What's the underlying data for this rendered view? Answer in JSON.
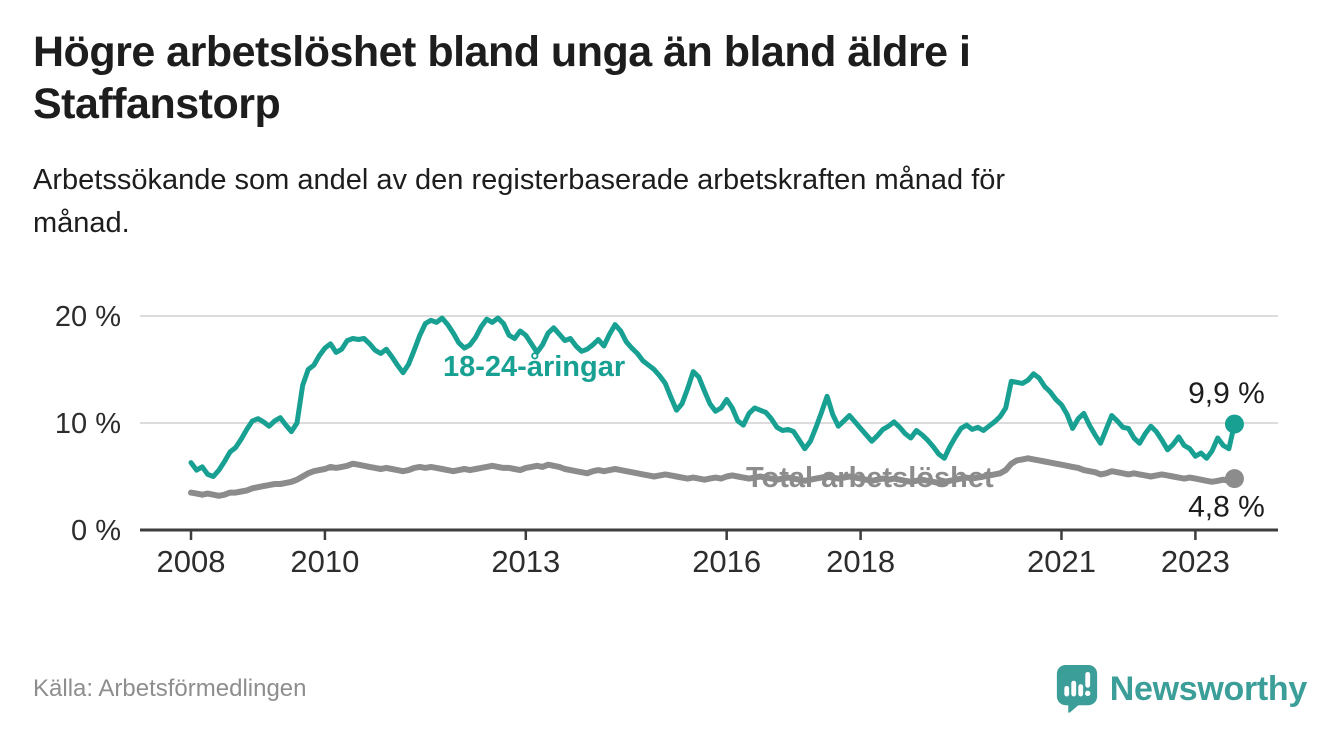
{
  "header": {
    "title": "Högre arbetslöshet bland unga än bland äldre i\nStaffanstorp",
    "subtitle": "Arbetssökande som andel av den registerbaserade arbetskraften månad för\nmånad."
  },
  "footer": {
    "source": "Källa: Arbetsförmedlingen",
    "brand": "Newsworthy",
    "brand_icon": "newsworthy-speech-bubble-bar-chart-icon"
  },
  "colors": {
    "youth_teal": "#18a193",
    "total_gray": "#8c8c8c",
    "gridline": "#dcdcdc",
    "axis": "#3d3d3d",
    "tick_label": "#2d2d2d",
    "annotation_text": "#1d1d1d",
    "brand_teal": "#3b9e98",
    "title_text": "#1d1d1d",
    "source_text": "#8e8e8e"
  },
  "chart_data": {
    "type": "line",
    "x_unit": "month",
    "x_start": "2008-01",
    "x_end": "2023-08",
    "grid": "horizontal",
    "ylim": [
      0,
      21
    ],
    "y_ticks": [
      {
        "value": 0,
        "label": "0 %"
      },
      {
        "value": 10,
        "label": "10 %"
      },
      {
        "value": 20,
        "label": "20 %"
      }
    ],
    "x_ticks": [
      {
        "year": 2008,
        "label": "2008"
      },
      {
        "year": 2010,
        "label": "2010"
      },
      {
        "year": 2013,
        "label": "2013"
      },
      {
        "year": 2016,
        "label": "2016"
      },
      {
        "year": 2018,
        "label": "2018"
      },
      {
        "year": 2021,
        "label": "2021"
      },
      {
        "year": 2023,
        "label": "2023"
      }
    ],
    "series": [
      {
        "name": "Total arbetslöshet",
        "label": "Total arbetslöshet",
        "end_label": "4,8 %",
        "end_value": 4.8,
        "color": "#8c8c8c",
        "stroke_width": 6,
        "values": [
          3.5,
          3.4,
          3.3,
          3.4,
          3.3,
          3.2,
          3.3,
          3.5,
          3.5,
          3.6,
          3.7,
          3.9,
          4.0,
          4.1,
          4.2,
          4.3,
          4.3,
          4.4,
          4.5,
          4.7,
          5.0,
          5.3,
          5.5,
          5.6,
          5.7,
          5.9,
          5.8,
          5.9,
          6.0,
          6.2,
          6.1,
          6.0,
          5.9,
          5.8,
          5.7,
          5.8,
          5.7,
          5.6,
          5.5,
          5.6,
          5.8,
          5.9,
          5.8,
          5.9,
          5.8,
          5.7,
          5.6,
          5.5,
          5.6,
          5.7,
          5.6,
          5.7,
          5.8,
          5.9,
          6.0,
          5.9,
          5.8,
          5.8,
          5.7,
          5.6,
          5.8,
          5.9,
          6.0,
          5.9,
          6.1,
          6.0,
          5.9,
          5.7,
          5.6,
          5.5,
          5.4,
          5.3,
          5.5,
          5.6,
          5.5,
          5.6,
          5.7,
          5.6,
          5.5,
          5.4,
          5.3,
          5.2,
          5.1,
          5.0,
          5.1,
          5.2,
          5.1,
          5.0,
          4.9,
          4.8,
          4.9,
          4.8,
          4.7,
          4.8,
          4.9,
          4.8,
          5.0,
          5.1,
          5.0,
          4.9,
          4.8,
          4.9,
          5.0,
          4.9,
          4.8,
          4.7,
          4.8,
          4.9,
          4.8,
          4.7,
          4.6,
          4.7,
          4.8,
          4.9,
          5.0,
          4.9,
          4.8,
          4.9,
          5.0,
          4.9,
          4.8,
          4.7,
          4.6,
          4.7,
          4.8,
          4.7,
          4.8,
          4.7,
          4.6,
          4.5,
          4.6,
          4.7,
          4.6,
          4.5,
          4.4,
          4.5,
          4.6,
          4.7,
          4.8,
          4.9,
          4.8,
          4.9,
          5.0,
          5.1,
          5.2,
          5.3,
          5.6,
          6.2,
          6.5,
          6.6,
          6.7,
          6.6,
          6.5,
          6.4,
          6.3,
          6.2,
          6.1,
          6.0,
          5.9,
          5.8,
          5.6,
          5.5,
          5.4,
          5.2,
          5.3,
          5.5,
          5.4,
          5.3,
          5.2,
          5.3,
          5.2,
          5.1,
          5.0,
          5.1,
          5.2,
          5.1,
          5.0,
          4.9,
          4.8,
          4.9,
          4.8,
          4.7,
          4.6,
          4.5,
          4.6,
          4.7,
          4.6,
          4.8
        ]
      },
      {
        "name": "18-24-åringar",
        "label": "18-24-åringar",
        "end_label": "9,9 %",
        "end_value": 9.9,
        "color": "#18a193",
        "stroke_width": 5,
        "values": [
          6.3,
          5.6,
          5.9,
          5.2,
          5.0,
          5.6,
          6.4,
          7.3,
          7.7,
          8.5,
          9.4,
          10.2,
          10.4,
          10.1,
          9.7,
          10.2,
          10.5,
          9.8,
          9.2,
          10.0,
          13.5,
          15.0,
          15.4,
          16.3,
          17.0,
          17.4,
          16.6,
          16.9,
          17.7,
          17.9,
          17.8,
          17.9,
          17.4,
          16.8,
          16.5,
          16.9,
          16.2,
          15.4,
          14.7,
          15.5,
          16.8,
          18.2,
          19.3,
          19.6,
          19.4,
          19.8,
          19.2,
          18.4,
          17.5,
          17.0,
          17.3,
          18.0,
          19.0,
          19.7,
          19.4,
          19.8,
          19.3,
          18.2,
          17.9,
          18.6,
          18.2,
          17.4,
          16.6,
          17.3,
          18.4,
          18.9,
          18.3,
          17.7,
          17.9,
          17.2,
          16.7,
          16.9,
          17.3,
          17.8,
          17.2,
          18.3,
          19.2,
          18.6,
          17.6,
          17.0,
          16.5,
          15.8,
          15.4,
          15.0,
          14.4,
          13.7,
          12.4,
          11.2,
          11.8,
          13.2,
          14.8,
          14.3,
          13.0,
          11.8,
          11.1,
          11.4,
          12.2,
          11.4,
          10.2,
          9.8,
          10.9,
          11.4,
          11.2,
          11.0,
          10.4,
          9.6,
          9.3,
          9.4,
          9.2,
          8.4,
          7.6,
          8.3,
          9.6,
          11.0,
          12.5,
          10.8,
          9.7,
          10.2,
          10.7,
          10.1,
          9.5,
          8.9,
          8.3,
          8.8,
          9.4,
          9.7,
          10.1,
          9.6,
          9.0,
          8.6,
          9.3,
          8.9,
          8.4,
          7.8,
          7.1,
          6.7,
          7.8,
          8.7,
          9.5,
          9.8,
          9.4,
          9.6,
          9.3,
          9.7,
          10.1,
          10.6,
          11.4,
          13.9,
          13.8,
          13.7,
          14.0,
          14.6,
          14.2,
          13.4,
          12.9,
          12.2,
          11.7,
          10.8,
          9.5,
          10.4,
          10.9,
          9.8,
          8.9,
          8.1,
          9.4,
          10.7,
          10.2,
          9.6,
          9.5,
          8.6,
          8.1,
          9.0,
          9.7,
          9.2,
          8.4,
          7.5,
          8.0,
          8.7,
          7.9,
          7.6,
          6.9,
          7.2,
          6.7,
          7.4,
          8.6,
          7.9,
          7.6,
          9.9
        ]
      }
    ]
  }
}
